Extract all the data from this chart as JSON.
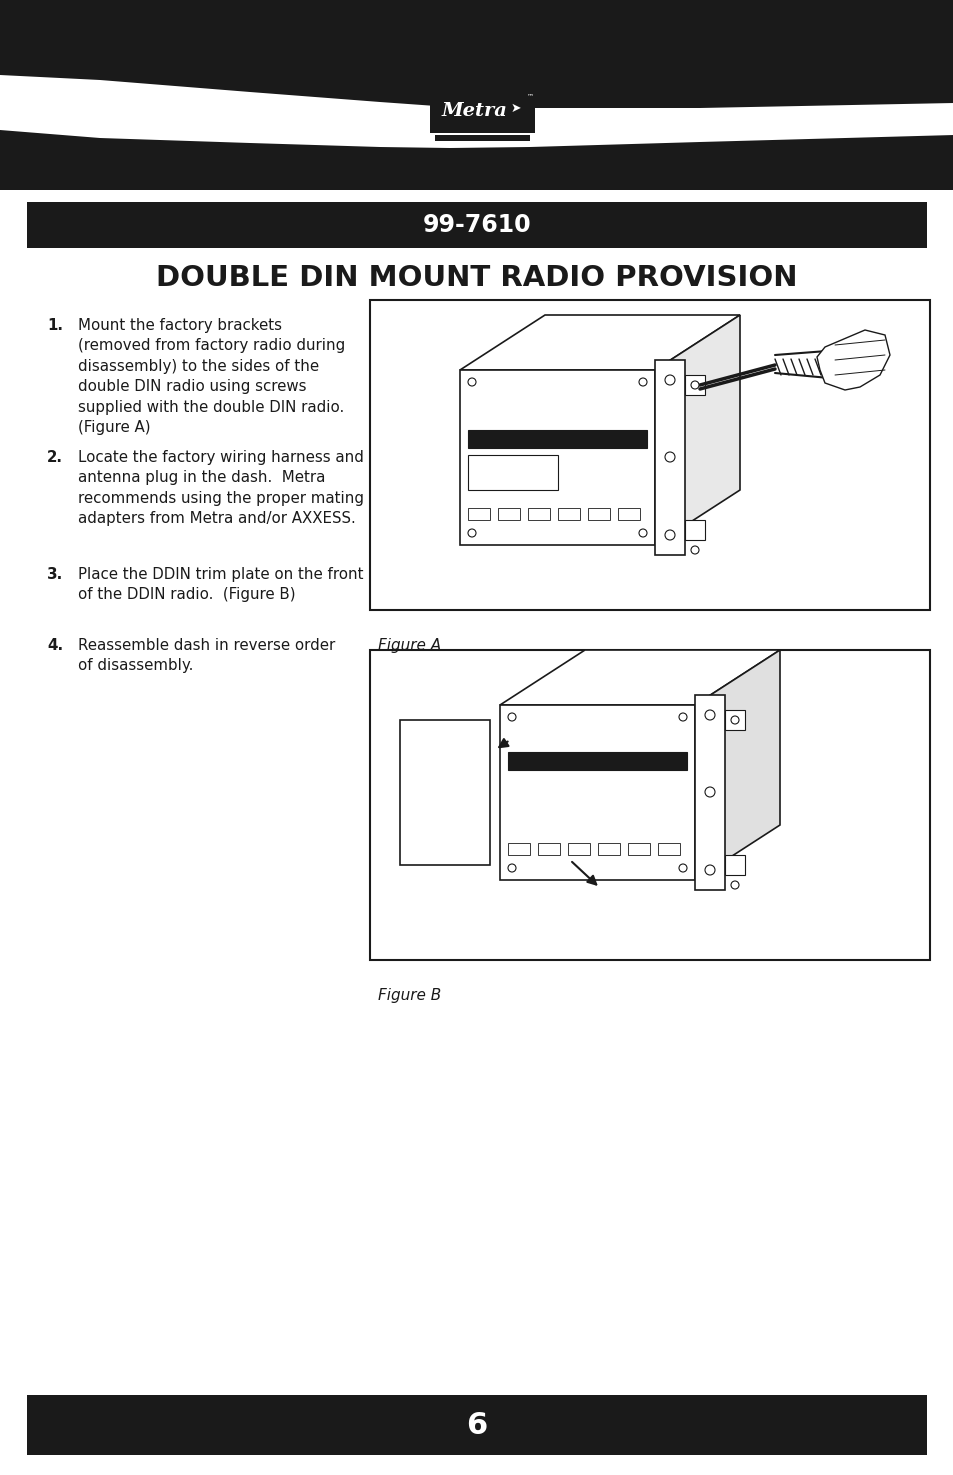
{
  "bg_color": "#ffffff",
  "dark_color": "#1a1a1a",
  "page_number": "6",
  "model_number": "99-7610",
  "title": "DOUBLE DIN MOUNT RADIO PROVISION",
  "steps": [
    {
      "number": "1.",
      "text": "Mount the factory brackets\n(removed from factory radio during\ndisassembly) to the sides of the\ndouble DIN radio using screws\nsupplied with the double DIN radio.\n(Figure A)"
    },
    {
      "number": "2.",
      "text": "Locate the factory wiring harness and\nantenna plug in the dash.  Metra\nrecommends using the proper mating\nadapters from Metra and/or AXXESS."
    },
    {
      "number": "3.",
      "text": "Place the DDIN trim plate on the front\nof the DDIN radio.  (Figure B)"
    },
    {
      "number": "4.",
      "text": "Reassemble dash in reverse order\nof disassembly."
    }
  ],
  "figure_a_label": "Figure A",
  "figure_b_label": "Figure B"
}
